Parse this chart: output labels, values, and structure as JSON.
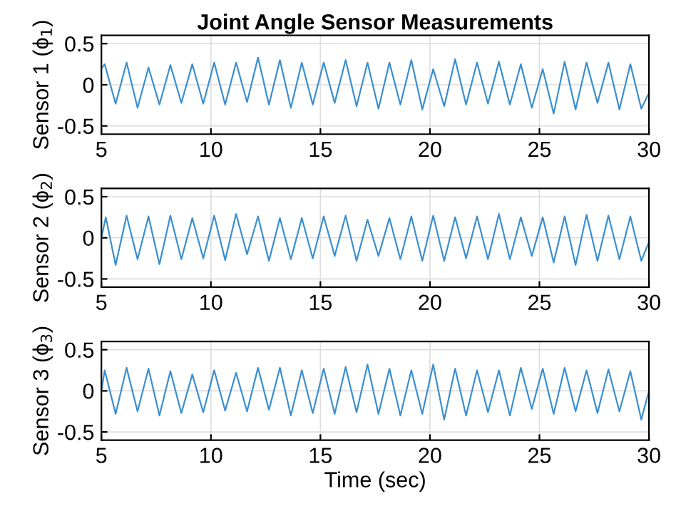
{
  "chart_data": [
    {
      "type": "line",
      "title": "Joint Angle Sensor Measurements",
      "ylabel": "Sensor 1 (ϕ$_{1}$)",
      "xlim": [
        5,
        30
      ],
      "xticks": [
        5,
        10,
        15,
        20,
        25,
        30
      ],
      "ylim": [
        -0.6,
        0.6
      ],
      "yticks": [
        -0.5,
        0,
        0.5
      ],
      "grid": true,
      "series": [
        {
          "color": "#3b8fd0",
          "x": [
            5,
            5.15,
            5.65,
            6.15,
            6.65,
            7.15,
            7.65,
            8.15,
            8.65,
            9.15,
            9.65,
            10.15,
            10.65,
            11.15,
            11.65,
            12.15,
            12.65,
            13.15,
            13.65,
            14.15,
            14.65,
            15.15,
            15.65,
            16.15,
            16.65,
            17.15,
            17.65,
            18.15,
            18.65,
            19.15,
            19.65,
            20.15,
            20.65,
            21.15,
            21.65,
            22.15,
            22.65,
            23.15,
            23.65,
            24.15,
            24.65,
            25.15,
            25.65,
            26.15,
            26.65,
            27.15,
            27.65,
            28.15,
            28.65,
            29.15,
            29.65,
            30
          ],
          "values": [
            0.2,
            0.25,
            -0.23,
            0.27,
            -0.28,
            0.21,
            -0.24,
            0.24,
            -0.22,
            0.25,
            -0.23,
            0.27,
            -0.24,
            0.27,
            -0.21,
            0.33,
            -0.24,
            0.3,
            -0.28,
            0.27,
            -0.24,
            0.27,
            -0.22,
            0.3,
            -0.26,
            0.27,
            -0.29,
            0.27,
            -0.24,
            0.3,
            -0.3,
            0.19,
            -0.26,
            0.31,
            -0.24,
            0.27,
            -0.23,
            0.28,
            -0.24,
            0.25,
            -0.28,
            0.19,
            -0.35,
            0.28,
            -0.3,
            0.27,
            -0.22,
            0.27,
            -0.3,
            0.25,
            -0.29,
            -0.1
          ]
        }
      ]
    },
    {
      "type": "line",
      "ylabel": "Sensor 2 (ϕ$_{2}$)",
      "xlim": [
        5,
        30
      ],
      "xticks": [
        5,
        10,
        15,
        20,
        25,
        30
      ],
      "ylim": [
        -0.6,
        0.6
      ],
      "yticks": [
        -0.5,
        0,
        0.5
      ],
      "grid": true,
      "series": [
        {
          "color": "#3b8fd0",
          "x": [
            5,
            5.2,
            5.65,
            6.15,
            6.65,
            7.15,
            7.65,
            8.15,
            8.65,
            9.15,
            9.65,
            10.15,
            10.65,
            11.15,
            11.65,
            12.15,
            12.65,
            13.15,
            13.65,
            14.15,
            14.65,
            15.15,
            15.65,
            16.15,
            16.65,
            17.15,
            17.65,
            18.15,
            18.65,
            19.15,
            19.65,
            20.15,
            20.65,
            21.15,
            21.65,
            22.15,
            22.65,
            23.15,
            23.65,
            24.15,
            24.65,
            25.15,
            25.65,
            26.15,
            26.65,
            27.15,
            27.65,
            28.15,
            28.65,
            29.15,
            29.65,
            30
          ],
          "values": [
            0.0,
            0.25,
            -0.33,
            0.27,
            -0.26,
            0.26,
            -0.32,
            0.27,
            -0.26,
            0.24,
            -0.25,
            0.27,
            -0.27,
            0.29,
            -0.2,
            0.26,
            -0.28,
            0.24,
            -0.26,
            0.24,
            -0.25,
            0.26,
            -0.22,
            0.27,
            -0.28,
            0.22,
            -0.22,
            0.24,
            -0.26,
            0.26,
            -0.28,
            0.27,
            -0.28,
            0.25,
            -0.25,
            0.26,
            -0.26,
            0.29,
            -0.26,
            0.25,
            -0.22,
            0.25,
            -0.3,
            0.26,
            -0.33,
            0.28,
            -0.28,
            0.27,
            -0.26,
            0.26,
            -0.28,
            -0.05
          ]
        }
      ]
    },
    {
      "type": "line",
      "ylabel": "Sensor 3 (ϕ$_{3}$)",
      "xlabel": "Time (sec)",
      "xlim": [
        5,
        30
      ],
      "xticks": [
        5,
        10,
        15,
        20,
        25,
        30
      ],
      "ylim": [
        -0.6,
        0.6
      ],
      "yticks": [
        -0.5,
        0,
        0.5
      ],
      "grid": true,
      "series": [
        {
          "color": "#3b8fd0",
          "x": [
            5,
            5.15,
            5.65,
            6.15,
            6.65,
            7.15,
            7.65,
            8.15,
            8.65,
            9.15,
            9.65,
            10.15,
            10.65,
            11.15,
            11.65,
            12.15,
            12.65,
            13.15,
            13.65,
            14.15,
            14.65,
            15.15,
            15.65,
            16.15,
            16.65,
            17.15,
            17.65,
            18.15,
            18.65,
            19.15,
            19.65,
            20.15,
            20.65,
            21.15,
            21.65,
            22.15,
            22.65,
            23.15,
            23.65,
            24.15,
            24.65,
            25.15,
            25.65,
            26.15,
            26.65,
            27.15,
            27.65,
            28.15,
            28.65,
            29.15,
            29.65,
            30
          ],
          "values": [
            0.0,
            0.25,
            -0.28,
            0.28,
            -0.25,
            0.27,
            -0.3,
            0.24,
            -0.27,
            0.2,
            -0.26,
            0.25,
            -0.24,
            0.22,
            -0.25,
            0.28,
            -0.23,
            0.28,
            -0.3,
            0.25,
            -0.27,
            0.27,
            -0.28,
            0.29,
            -0.26,
            0.32,
            -0.28,
            0.27,
            -0.3,
            0.25,
            -0.28,
            0.32,
            -0.35,
            0.27,
            -0.3,
            0.25,
            -0.26,
            0.25,
            -0.3,
            0.28,
            -0.22,
            0.27,
            -0.28,
            0.28,
            -0.25,
            0.25,
            -0.27,
            0.26,
            -0.25,
            0.24,
            -0.35,
            0.0
          ]
        }
      ]
    }
  ]
}
